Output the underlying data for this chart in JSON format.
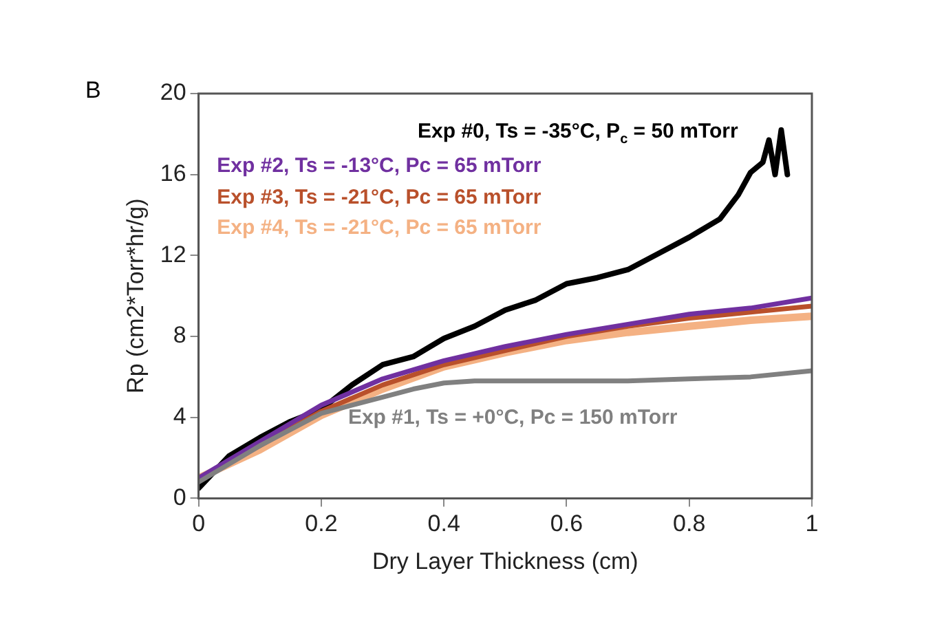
{
  "chart_data": {
    "type": "line",
    "xlabel": "Dry Layer Thickness (cm)",
    "ylabel": "Rp (cm2*Torr*hr/g)",
    "annotations": [
      "B"
    ],
    "xlim": [
      0,
      1
    ],
    "xticks": [
      0,
      0.2,
      0.4,
      0.6,
      0.8,
      1
    ],
    "ylim": [
      0,
      20
    ],
    "yticks": [
      0,
      4,
      8,
      12,
      16,
      20
    ],
    "grid": false,
    "legend": false,
    "marker": "none",
    "line_style": "solid",
    "series": [
      {
        "name": "Exp #1, Ts = +0°C, Pc = 150 mTorr",
        "color": "#808080",
        "x": [
          0,
          0.1,
          0.2,
          0.3,
          0.35,
          0.4,
          0.45,
          0.5,
          0.6,
          0.7,
          0.8,
          0.9,
          1
        ],
        "values": [
          0.8,
          2.6,
          4.2,
          5.0,
          5.4,
          5.7,
          5.8,
          5.8,
          5.8,
          5.8,
          5.9,
          6.0,
          6.3
        ]
      },
      {
        "name": "Exp #2, Ts = -13°C, Pc = 65 mTorr",
        "color": "#7030a0",
        "x": [
          0,
          0.1,
          0.2,
          0.3,
          0.4,
          0.5,
          0.6,
          0.7,
          0.8,
          0.9,
          1
        ],
        "values": [
          1.0,
          2.8,
          4.6,
          5.9,
          6.8,
          7.5,
          8.1,
          8.6,
          9.1,
          9.4,
          9.9
        ]
      },
      {
        "name": "Exp #3, Ts = -21°C, Pc = 65 mTorr",
        "color": "#b9502b",
        "x": [
          0,
          0.1,
          0.2,
          0.3,
          0.4,
          0.5,
          0.6,
          0.7,
          0.8,
          0.9,
          1
        ],
        "values": [
          1.0,
          2.6,
          4.3,
          5.6,
          6.6,
          7.3,
          8.0,
          8.5,
          8.9,
          9.2,
          9.5
        ]
      },
      {
        "name": "Exp #4, Ts = -21°C, Pc = 65 mTorr",
        "color": "#f4b183",
        "x": [
          0,
          0.1,
          0.2,
          0.3,
          0.4,
          0.5,
          0.6,
          0.7,
          0.8,
          0.9,
          1
        ],
        "values": [
          1.0,
          2.4,
          4.1,
          5.4,
          6.5,
          7.2,
          7.8,
          8.2,
          8.5,
          8.8,
          9.0
        ]
      },
      {
        "name": "Exp #0, Ts = -35°C, P$_{c}$ = 50 mTorr",
        "color": "#000000",
        "x": [
          0,
          0.05,
          0.1,
          0.15,
          0.2,
          0.25,
          0.3,
          0.35,
          0.4,
          0.45,
          0.5,
          0.55,
          0.6,
          0.65,
          0.7,
          0.75,
          0.8,
          0.85,
          0.88,
          0.9,
          0.92,
          0.93,
          0.94,
          0.95,
          0.96
        ],
        "values": [
          0.5,
          2.1,
          3.0,
          3.8,
          4.4,
          5.6,
          6.6,
          7.0,
          7.9,
          8.5,
          9.3,
          9.8,
          10.6,
          10.9,
          11.3,
          12.1,
          12.9,
          13.8,
          15.0,
          16.1,
          16.6,
          17.7,
          16.0,
          18.2,
          16.0
        ]
      }
    ]
  }
}
